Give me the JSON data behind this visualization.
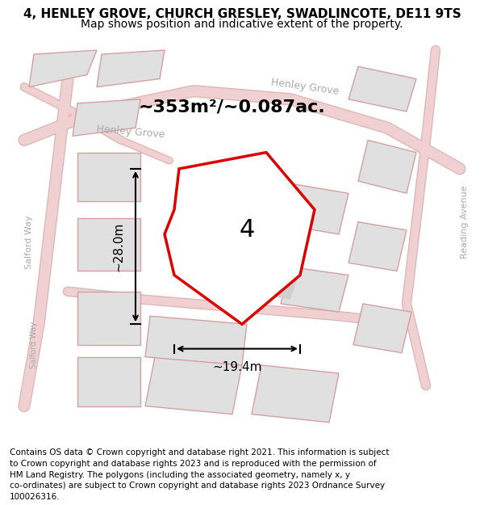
{
  "title_line1": "4, HENLEY GROVE, CHURCH GRESLEY, SWADLINCOTE, DE11 9TS",
  "title_line2": "Map shows position and indicative extent of the property.",
  "area_text": "~353m²/~0.087ac.",
  "dimension_h": "~28.0m",
  "dimension_w": "~19.4m",
  "plot_number": "4",
  "footer_lines": [
    "Contains OS data © Crown copyright and database right 2021. This information is subject",
    "to Crown copyright and database rights 2023 and is reproduced with the permission of",
    "HM Land Registry. The polygons (including the associated geometry, namely x, y",
    "co-ordinates) are subject to Crown copyright and database rights 2023 Ordnance Survey",
    "100026316."
  ],
  "map_bg_color": "#f2f2f2",
  "road_color": "#f0d0d0",
  "road_edge_color": "#deb8b8",
  "plot_fill_color": "#ffffff",
  "plot_border_color": "#dd0000",
  "building_fill_color": "#e0e0e0",
  "building_edge_color": "#d4a0a0",
  "street_label_color": "#aaaaaa",
  "title_fontsize": 11,
  "subtitle_fontsize": 10,
  "area_fontsize": 16,
  "plot_num_fontsize": 22,
  "dim_fontsize": 11,
  "footer_fontsize": 7.5
}
